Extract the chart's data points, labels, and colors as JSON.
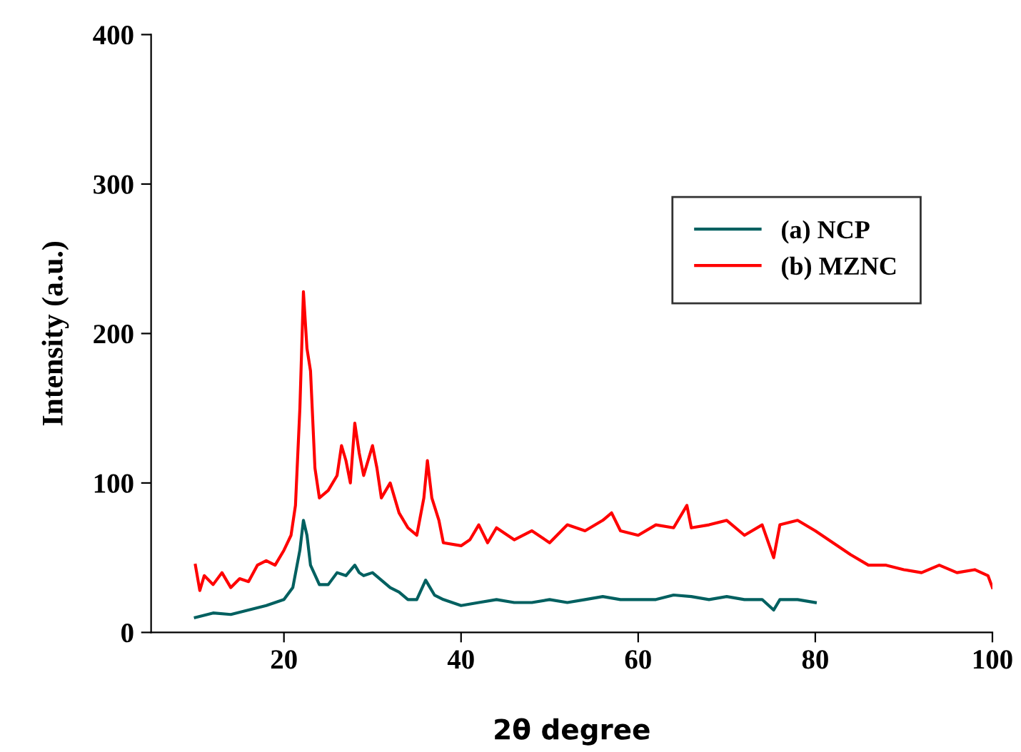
{
  "chart_data": {
    "type": "line",
    "xlabel": "2θ degree",
    "ylabel": "Intensity (a.u.)",
    "xlim": [
      5,
      100
    ],
    "ylim": [
      0,
      400
    ],
    "xticks": [
      20,
      40,
      60,
      80,
      100
    ],
    "yticks": [
      0,
      100,
      200,
      300,
      400
    ],
    "grid": false,
    "legend": "top right",
    "marker": "none",
    "line_style": "solid",
    "series": [
      {
        "name": "(a) NCP",
        "color": "#006060",
        "x": [
          10,
          12,
          14,
          16,
          18,
          20,
          21,
          21.8,
          22.2,
          22.6,
          23,
          24,
          25,
          26,
          27,
          28,
          28.5,
          29,
          30,
          31,
          32,
          33,
          34,
          35,
          36,
          36.5,
          37,
          38,
          40,
          42,
          44,
          46,
          48,
          50,
          52,
          54,
          56,
          58,
          60,
          62,
          64,
          66,
          68,
          70,
          72,
          74,
          75.3,
          76,
          78,
          80
        ],
        "values": [
          10,
          13,
          12,
          15,
          18,
          22,
          30,
          55,
          75,
          65,
          45,
          32,
          32,
          40,
          38,
          45,
          40,
          38,
          40,
          35,
          30,
          27,
          22,
          22,
          35,
          30,
          25,
          22,
          18,
          20,
          22,
          20,
          20,
          22,
          20,
          22,
          24,
          22,
          22,
          22,
          25,
          24,
          22,
          24,
          22,
          22,
          15,
          22,
          22,
          20
        ]
      },
      {
        "name": "(b) MZNC",
        "color": "#ff0000",
        "x": [
          10,
          10.5,
          11,
          12,
          13,
          14,
          15,
          16,
          17,
          18,
          19,
          20,
          20.8,
          21.3,
          21.8,
          22.2,
          22.6,
          23,
          23.5,
          24,
          25,
          26,
          26.5,
          27,
          27.5,
          28,
          28.5,
          29,
          30,
          30.5,
          31,
          32,
          33,
          34,
          35,
          35.8,
          36.2,
          36.7,
          37.5,
          38,
          40,
          41,
          42,
          43,
          44,
          46,
          48,
          50,
          52,
          54,
          56,
          57,
          58,
          60,
          62,
          64,
          65.5,
          66,
          68,
          70,
          72,
          74,
          75.3,
          76,
          78,
          80,
          82,
          84,
          86,
          88,
          90,
          92,
          94,
          96,
          98,
          99.5,
          100
        ],
        "values": [
          45,
          28,
          38,
          32,
          40,
          30,
          36,
          34,
          45,
          48,
          45,
          55,
          65,
          85,
          150,
          228,
          190,
          175,
          110,
          90,
          95,
          105,
          125,
          115,
          100,
          140,
          120,
          105,
          125,
          110,
          90,
          100,
          80,
          70,
          65,
          90,
          115,
          90,
          75,
          60,
          58,
          62,
          72,
          60,
          70,
          62,
          68,
          60,
          72,
          68,
          75,
          80,
          68,
          65,
          72,
          70,
          85,
          70,
          72,
          75,
          65,
          72,
          50,
          72,
          75,
          68,
          60,
          52,
          45,
          45,
          42,
          40,
          45,
          40,
          42,
          38,
          30
        ]
      }
    ]
  }
}
